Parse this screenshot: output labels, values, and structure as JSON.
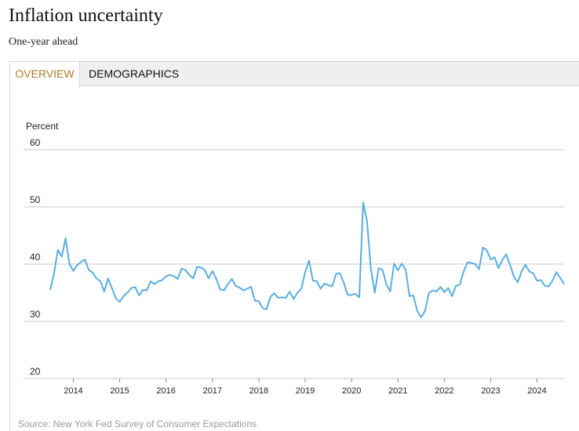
{
  "header": {
    "title": "Inflation uncertainty",
    "subtitle": "One-year ahead"
  },
  "tabs": [
    {
      "label": "OVERVIEW",
      "active": true
    },
    {
      "label": "DEMOGRAPHICS",
      "active": false
    }
  ],
  "footer": {
    "source": "Source: New York Fed Survey of Consumer Expectations"
  },
  "colors": {
    "line": "#5aaee0",
    "grid": "#c8c8c8",
    "accent": "#b07a2a"
  },
  "chart_data": {
    "type": "line",
    "ylabel": "Percent",
    "ylim": [
      20,
      60
    ],
    "yticks": [
      "60",
      "50",
      "40",
      "30",
      "20"
    ],
    "xticks": [
      "2014",
      "2015",
      "2016",
      "2017",
      "2018",
      "2019",
      "2020",
      "2021",
      "2022",
      "2023",
      "2024"
    ],
    "xrange": [
      2013.417,
      2024.583
    ],
    "series": [
      {
        "name": "Inflation uncertainty",
        "x_start": 2013.5,
        "step_months": 1,
        "values": [
          35.5,
          38.3,
          42.5,
          41.3,
          44.5,
          40.0,
          38.8,
          39.8,
          40.4,
          40.8,
          39.0,
          38.5,
          37.5,
          37.0,
          35.2,
          37.5,
          35.8,
          34.0,
          33.4,
          34.4,
          35.0,
          35.8,
          36.0,
          34.5,
          35.5,
          35.4,
          37.0,
          36.5,
          37.0,
          37.2,
          37.9,
          38.1,
          37.9,
          37.4,
          39.2,
          39.0,
          38.1,
          37.5,
          39.5,
          39.4,
          39.0,
          37.5,
          38.8,
          37.4,
          35.6,
          35.4,
          36.5,
          37.4,
          36.2,
          35.9,
          35.4,
          35.7,
          36.0,
          33.6,
          33.5,
          32.3,
          32.1,
          34.3,
          34.9,
          34.1,
          34.2,
          34.1,
          35.2,
          33.9,
          35.0,
          35.7,
          38.6,
          40.6,
          37.1,
          37.0,
          35.7,
          36.6,
          36.3,
          36.1,
          38.3,
          38.4,
          36.7,
          34.6,
          34.6,
          34.8,
          34.2,
          50.8,
          47.5,
          39.2,
          35.0,
          39.3,
          39.0,
          36.5,
          35.2,
          40.1,
          38.9,
          40.1,
          39.0,
          34.4,
          34.5,
          31.8,
          30.7,
          31.8,
          34.9,
          35.4,
          35.2,
          36.0,
          35.1,
          35.8,
          34.4,
          36.2,
          36.4,
          38.7,
          40.3,
          40.2,
          40.0,
          39.1,
          42.9,
          42.4,
          40.8,
          41.2,
          39.3,
          40.7,
          41.7,
          39.9,
          37.8,
          36.8,
          38.7,
          39.9,
          38.7,
          38.4,
          37.1,
          37.2,
          36.2,
          36.1,
          37.1,
          38.6,
          37.6,
          36.5
        ]
      }
    ]
  }
}
